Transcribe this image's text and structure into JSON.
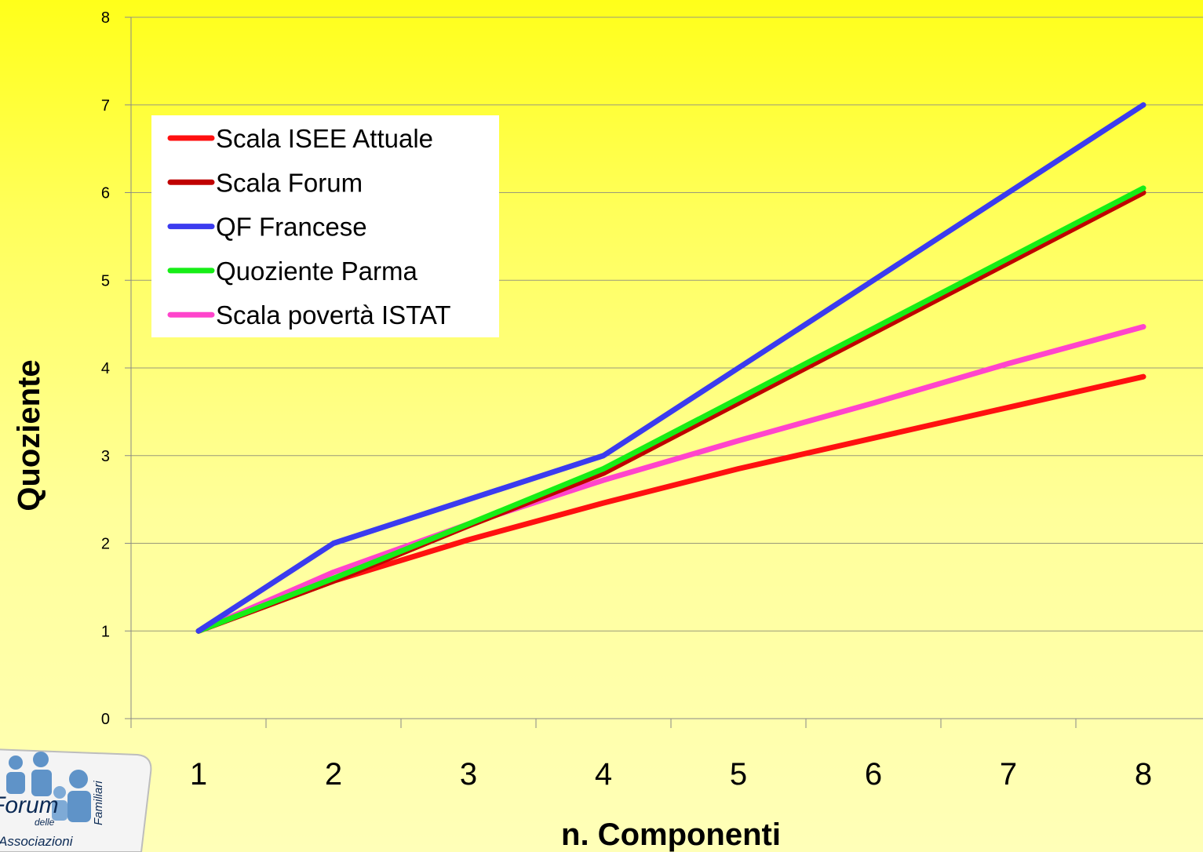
{
  "chart_data": {
    "type": "line",
    "xlabel": "n. Componenti",
    "ylabel": "Quoziente",
    "x": [
      1,
      2,
      3,
      4,
      5,
      6,
      7,
      8
    ],
    "ylim": [
      0,
      8
    ],
    "yticks": [
      "0",
      "1",
      "2",
      "3",
      "4",
      "5",
      "6",
      "7",
      "8"
    ],
    "xticks": [
      "1",
      "2",
      "3",
      "4",
      "5",
      "6",
      "7",
      "8"
    ],
    "grid": "horizontal",
    "legend_position": "top-left",
    "series": [
      {
        "name": "Scala ISEE Attuale",
        "color": "#ff1010",
        "values": [
          1,
          1.57,
          2.04,
          2.46,
          2.85,
          3.2,
          3.55,
          3.9
        ]
      },
      {
        "name": "Scala Forum",
        "color": "#c00000",
        "values": [
          1,
          1.57,
          2.2,
          2.8,
          3.6,
          4.4,
          5.2,
          6.0
        ]
      },
      {
        "name": "QF Francese",
        "color": "#3b3bef",
        "values": [
          1,
          2,
          2.5,
          3,
          4,
          5,
          6,
          7
        ]
      },
      {
        "name": "Quoziente Parma",
        "color": "#16ee16",
        "values": [
          1,
          1.6,
          2.22,
          2.85,
          3.65,
          4.45,
          5.25,
          6.05
        ]
      },
      {
        "name": "Scala povertà ISTAT",
        "color": "#ff44cc",
        "values": [
          1,
          1.67,
          2.22,
          2.72,
          3.17,
          3.6,
          4.05,
          4.47
        ]
      }
    ]
  },
  "logo": {
    "icon": "people-group-icon",
    "text_forum": "Forum",
    "text_delle": "delle",
    "text_associazioni": "Associazioni",
    "text_familiari": "Familiari"
  }
}
